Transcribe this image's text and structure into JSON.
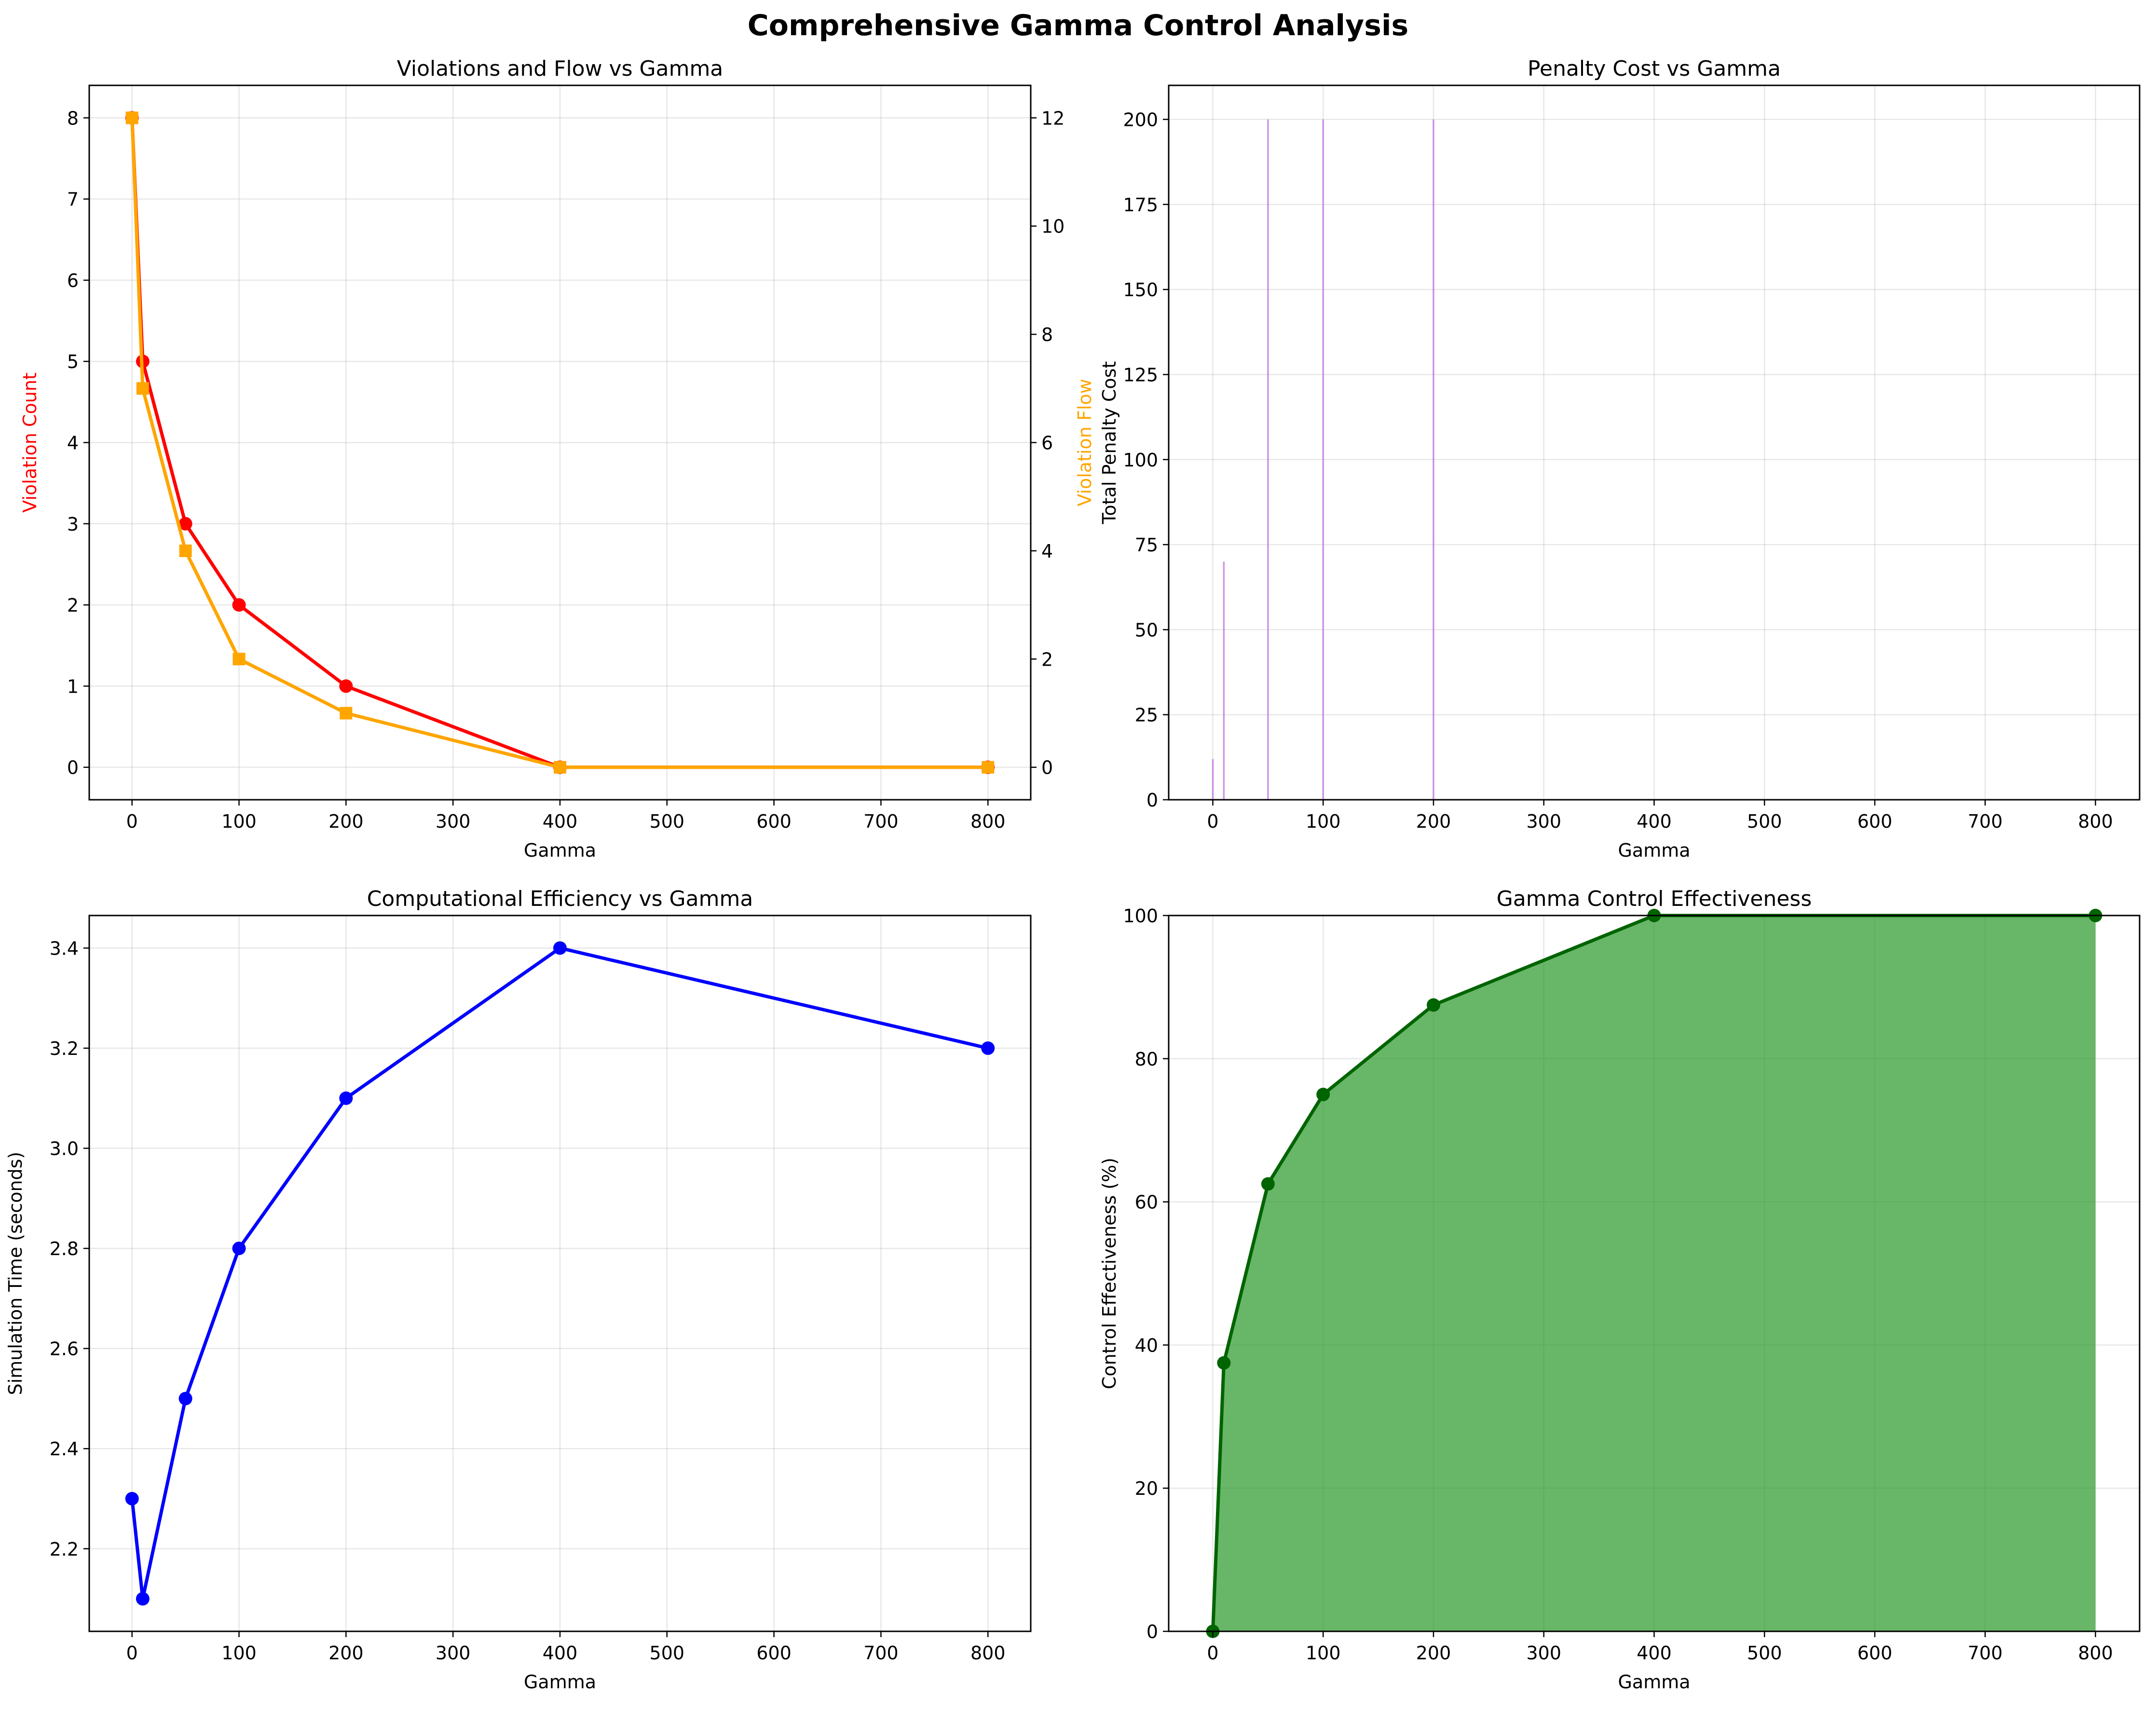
{
  "figure_title": "Comprehensive Gamma Control Analysis",
  "chart_data": [
    {
      "type": "line",
      "title": "Violations and Flow vs Gamma",
      "xlabel": "Gamma",
      "ylabel": "Violation Count",
      "ylabel_right": "Violation Flow",
      "x": [
        0,
        10,
        50,
        100,
        200,
        400,
        800
      ],
      "xlim": [
        -40,
        840
      ],
      "ylim": [
        -0.4,
        8.4
      ],
      "ylim_right": [
        -0.6,
        12.6
      ],
      "xticks": [
        0,
        100,
        200,
        300,
        400,
        500,
        600,
        700,
        800
      ],
      "yticks": [
        0,
        1,
        2,
        3,
        4,
        5,
        6,
        7,
        8
      ],
      "yticks_right": [
        0,
        2,
        4,
        6,
        8,
        10,
        12
      ],
      "grid": true,
      "series": [
        {
          "axis": "left",
          "color": "#ff0000",
          "marker": "circle",
          "values": [
            8,
            5,
            3,
            2,
            1,
            0,
            0
          ]
        },
        {
          "axis": "right",
          "color": "#ffa500",
          "marker": "square",
          "values": [
            12,
            7,
            4,
            2,
            1,
            0,
            0
          ]
        }
      ],
      "ylabel_color": "#ff0000",
      "ylabel_right_color": "#ffa500"
    },
    {
      "type": "bar",
      "title": "Penalty Cost vs Gamma",
      "xlabel": "Gamma",
      "ylabel": "Total Penalty Cost",
      "x": [
        0,
        10,
        50,
        100,
        200,
        400,
        800
      ],
      "values": [
        12,
        70,
        200,
        200,
        200,
        0,
        0
      ],
      "xlim": [
        -40,
        840
      ],
      "ylim": [
        0,
        210
      ],
      "xticks": [
        0,
        100,
        200,
        300,
        400,
        500,
        600,
        700,
        800
      ],
      "yticks": [
        0,
        25,
        50,
        75,
        100,
        125,
        150,
        175,
        200
      ],
      "grid": true,
      "color": "#c77fe0"
    },
    {
      "type": "line",
      "title": "Computational Efficiency vs Gamma",
      "xlabel": "Gamma",
      "ylabel": "Simulation Time (seconds)",
      "x": [
        0,
        10,
        50,
        100,
        200,
        400,
        800
      ],
      "xlim": [
        -40,
        840
      ],
      "ylim": [
        2.035,
        3.465
      ],
      "xticks": [
        0,
        100,
        200,
        300,
        400,
        500,
        600,
        700,
        800
      ],
      "yticks": [
        2.2,
        2.4,
        2.6,
        2.8,
        3.0,
        3.2,
        3.4
      ],
      "ytick_labels": [
        "2.2",
        "2.4",
        "2.6",
        "2.8",
        "3.0",
        "3.2",
        "3.4"
      ],
      "grid": true,
      "series": [
        {
          "axis": "left",
          "color": "#0000ff",
          "marker": "circle",
          "values": [
            2.3,
            2.1,
            2.5,
            2.8,
            3.1,
            3.4,
            3.2
          ]
        }
      ]
    },
    {
      "type": "area",
      "title": "Gamma Control Effectiveness",
      "xlabel": "Gamma",
      "ylabel": "Control Effectiveness (%)",
      "x": [
        0,
        10,
        50,
        100,
        200,
        400,
        800
      ],
      "xlim": [
        -40,
        840
      ],
      "ylim": [
        0,
        100
      ],
      "xticks": [
        0,
        100,
        200,
        300,
        400,
        500,
        600,
        700,
        800
      ],
      "yticks": [
        0,
        20,
        40,
        60,
        80,
        100
      ],
      "grid": true,
      "series": [
        {
          "axis": "left",
          "color": "#006400",
          "fill": "#2e9a2e",
          "marker": "circle",
          "values": [
            0,
            37.5,
            62.5,
            75,
            87.5,
            100,
            100
          ]
        }
      ]
    }
  ]
}
